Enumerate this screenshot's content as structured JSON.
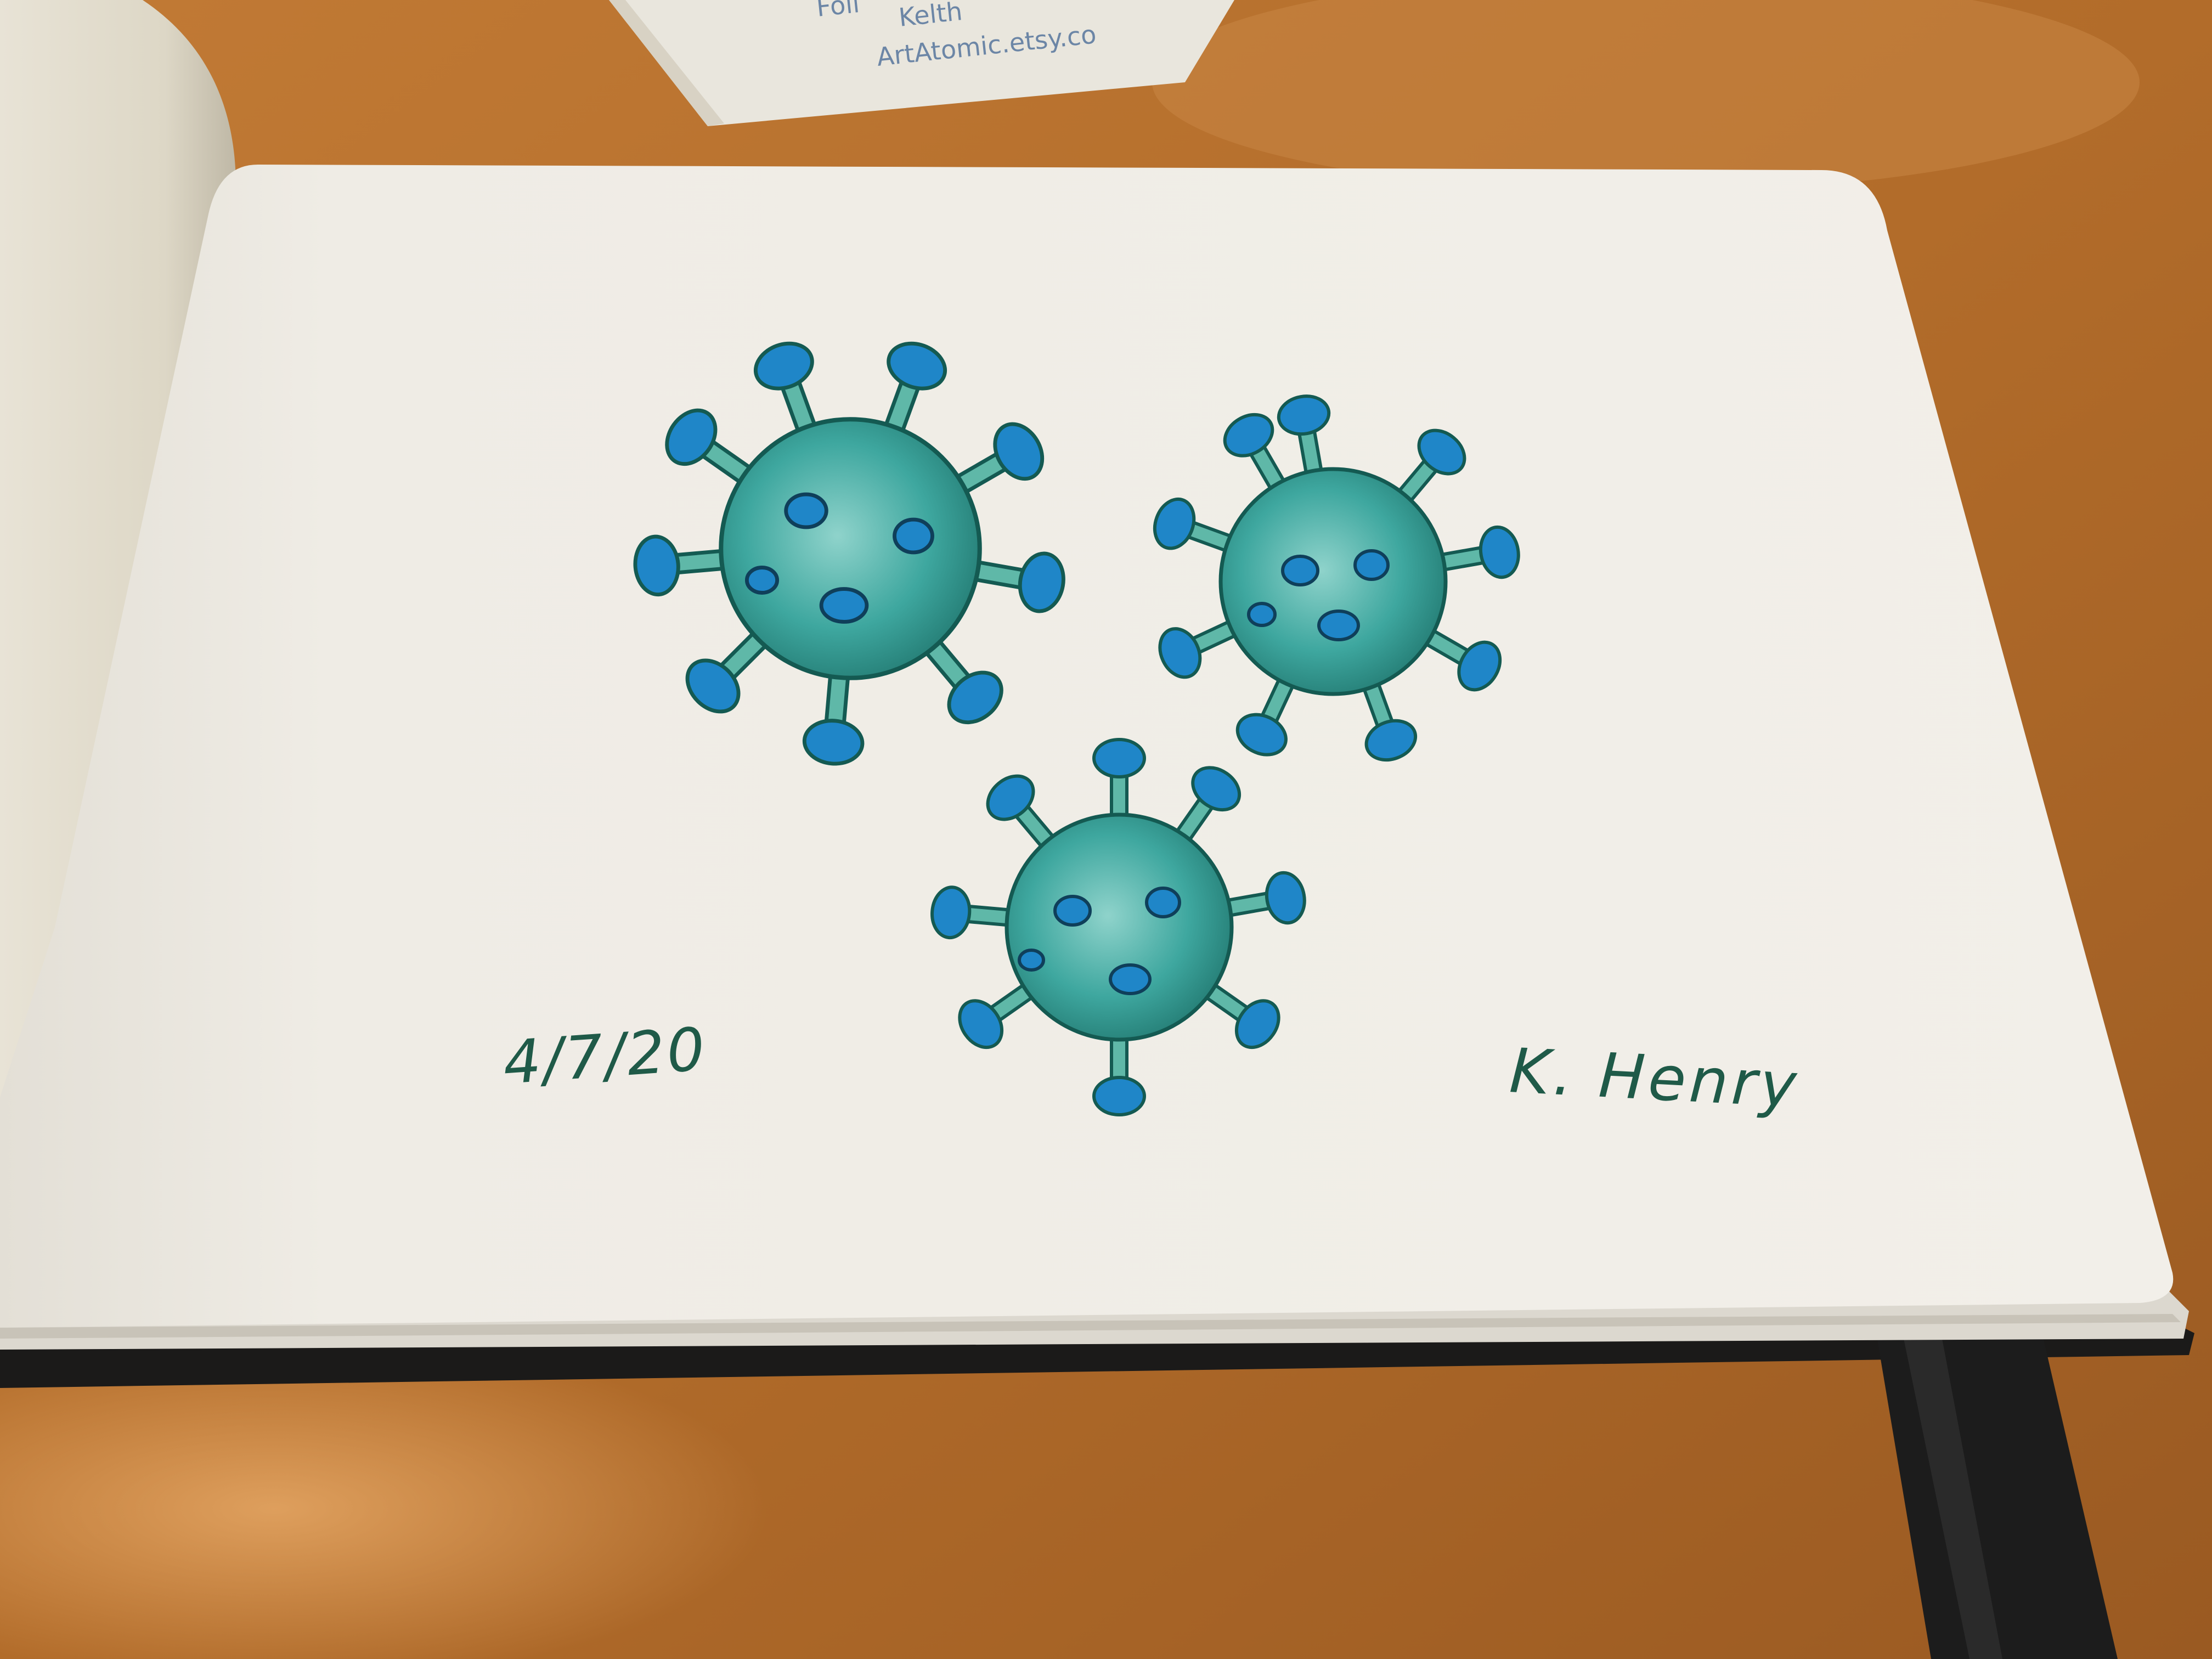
{
  "scene": {
    "subject": "hand-drawn watercolor sketch of three virus particles in an open sketchbook on a wooden table",
    "date_text": "4/7/20",
    "signature_text": "K. Henry",
    "card_text": "ArtAtomic.etsy.co",
    "card_partial": [
      "Foll",
      "Kelth"
    ]
  },
  "colors": {
    "table": "#b8732f",
    "table_light": "#d4975a",
    "page": "#eeebe4",
    "ink": "#1f5a48",
    "virus_body": "#3aa39d",
    "virus_spike_tip": "#1f86c8",
    "virus_outline": "#145a52",
    "bookmark": "#1c1c1c"
  },
  "icons": {
    "virus": "virus-icon",
    "bookmark": "ribbon-bookmark-icon"
  }
}
